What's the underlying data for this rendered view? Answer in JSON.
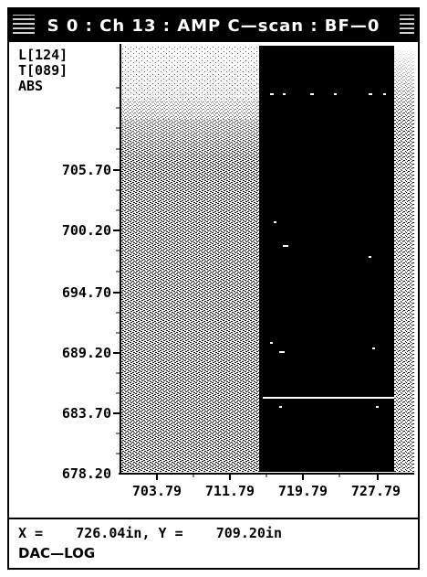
{
  "window": {
    "title": "S 0 : Ch 13 : AMP C—scan : BF—0"
  },
  "info": {
    "line1": "L[124]",
    "line2": "T[089]",
    "line3": "ABS"
  },
  "y_axis": {
    "ticks": [
      "705.70",
      "700.20",
      "694.70",
      "689.20",
      "683.70",
      "678.20"
    ]
  },
  "x_axis": {
    "ticks": [
      "703.79",
      "711.79",
      "719.79",
      "727.79"
    ]
  },
  "readout": {
    "x_label": "X =",
    "x_value": "726.04in,",
    "y_label": "Y =",
    "y_value": "709.20in"
  },
  "mode": "DAC—LOG",
  "colors": {
    "background": "#ffffff",
    "foreground": "#000000",
    "speckle_light": "#ffffff",
    "speckle_dark": "#000000"
  }
}
